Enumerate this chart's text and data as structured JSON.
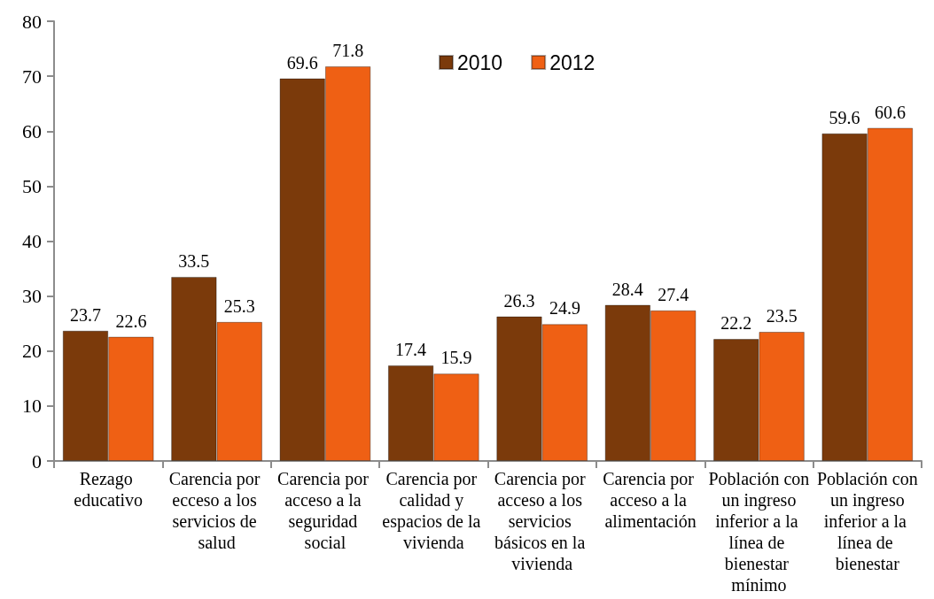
{
  "chart_data": {
    "type": "bar",
    "categories": [
      "Rezago educativo",
      "Carencia por ecceso a los servicios de salud",
      "Carencia por acceso a la seguridad social",
      "Carencia por calidad y espacios de la vivienda",
      "Carencia por acceso a los servicios básicos en la vivienda",
      "Carencia por acceso a la alimentación",
      "Población con un ingreso inferior a la línea de bienestar mínimo",
      "Población con un ingreso inferior a la línea de bienestar"
    ],
    "series": [
      {
        "name": "2010",
        "color": "#7b3a0b",
        "values": [
          23.7,
          33.5,
          69.6,
          17.4,
          26.3,
          28.4,
          22.2,
          59.6
        ]
      },
      {
        "name": "2012",
        "color": "#ef6014",
        "values": [
          22.6,
          25.3,
          71.8,
          15.9,
          24.9,
          27.4,
          23.5,
          60.6
        ]
      }
    ],
    "ylim": [
      0,
      80
    ],
    "yticks": [
      0,
      10,
      20,
      30,
      40,
      50,
      60,
      70,
      80
    ],
    "grid": false,
    "legend": "top",
    "data_labels": true
  }
}
